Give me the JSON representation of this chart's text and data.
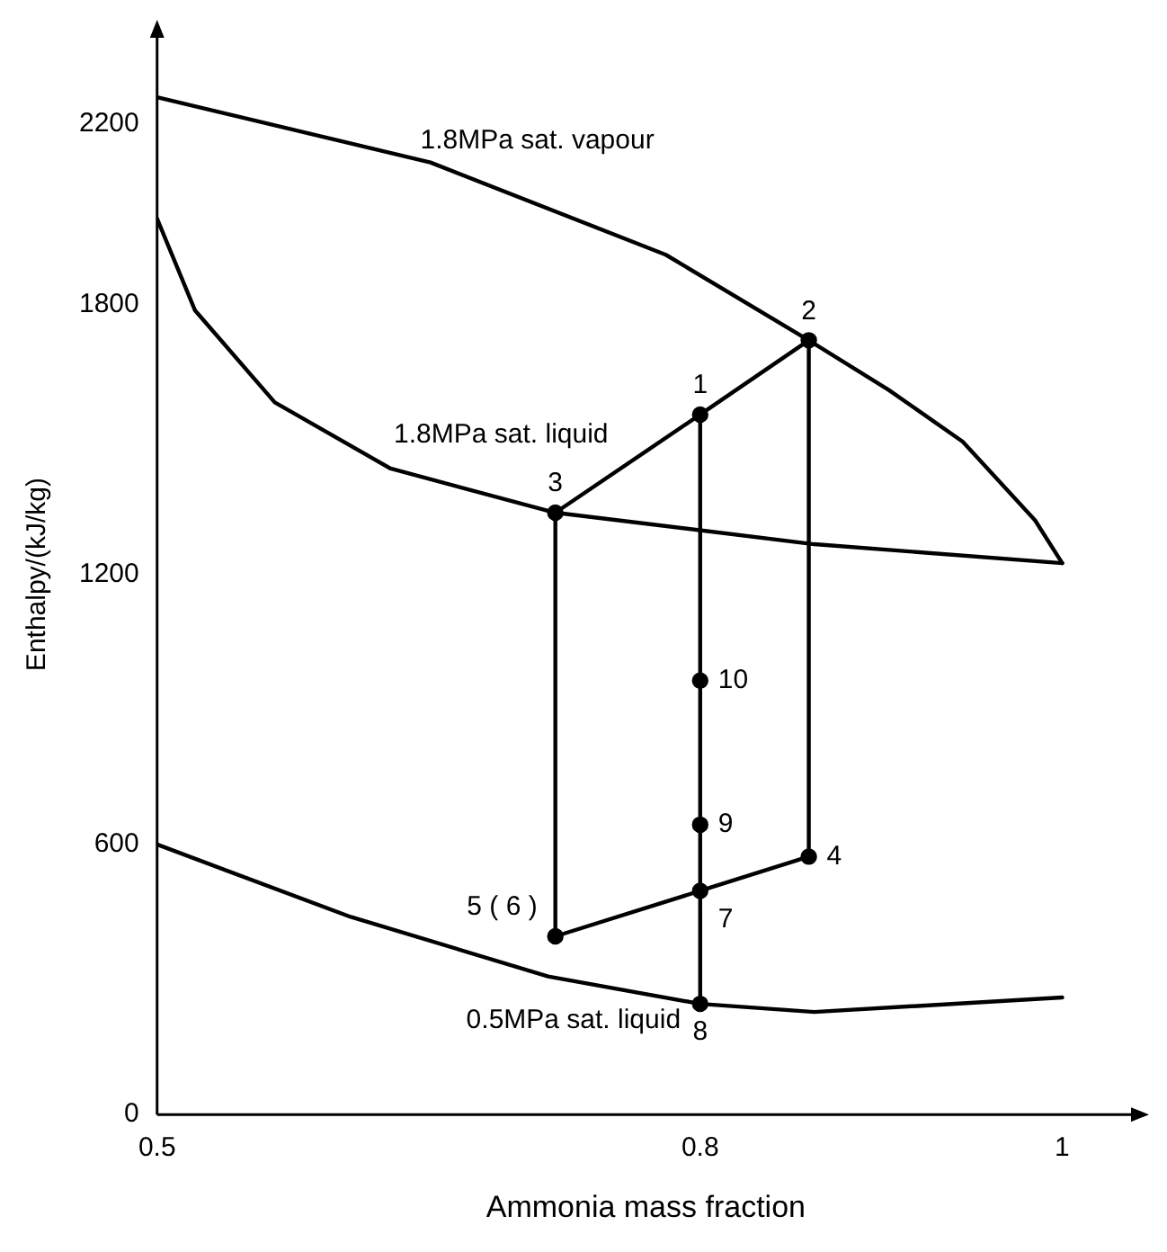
{
  "chart_data": {
    "type": "line",
    "xlabel": "Ammonia mass fraction",
    "ylabel": "Enthalpy/(kJ/kg)",
    "xlim": [
      0.5,
      1.04
    ],
    "ylim": [
      0,
      2400
    ],
    "xticks": [
      0.5,
      0.8,
      1
    ],
    "yticks": [
      0,
      600,
      1200,
      1800,
      2200
    ],
    "grid": false,
    "legend": false,
    "marker": "none",
    "line_style": "solid",
    "series": [
      {
        "name": "1.8MPa sat. vapour",
        "color": "#000000",
        "x": [
          0.5,
          0.651,
          0.781,
          0.86,
          0.904,
          0.945,
          0.985,
          1
        ],
        "values": [
          2260,
          2115,
          1910,
          1720,
          1610,
          1495,
          1320,
          1225
        ]
      },
      {
        "name": "1.8MPa sat. liquid",
        "color": "#000000",
        "x": [
          0.5,
          0.521,
          0.565,
          0.629,
          0.72,
          0.863,
          1
        ],
        "values": [
          1990,
          1786,
          1582,
          1435,
          1337,
          1267,
          1225
        ]
      },
      {
        "name": "0.5MPa sat. liquid",
        "color": "#000000",
        "x": [
          0.5,
          0.607,
          0.716,
          0.8,
          0.863,
          1
        ],
        "values": [
          600,
          439,
          307,
          246,
          228,
          260
        ]
      },
      {
        "color": "#000000",
        "x": [
          0.72,
          0.8,
          0.86
        ],
        "values": [
          1337,
          1555,
          1720
        ]
      },
      {
        "color": "#000000",
        "x": [
          0.72,
          0.8,
          0.86
        ],
        "values": [
          396,
          497,
          573
        ]
      },
      {
        "color": "#000000",
        "x": [
          0.86,
          0.86
        ],
        "values": [
          1720,
          573
        ]
      },
      {
        "color": "#000000",
        "x": [
          0.72,
          0.72
        ],
        "values": [
          1337,
          396
        ]
      },
      {
        "color": "#000000",
        "x": [
          0.8,
          0.8
        ],
        "values": [
          1555,
          246
        ]
      },
      {
        "type": "scatter",
        "marker": "circle",
        "color": "#000000",
        "x": [
          0.8,
          0.86,
          0.72,
          0.86,
          0.72,
          0.8,
          0.8,
          0.8,
          0.8
        ],
        "values": [
          1555,
          1720,
          1337,
          573,
          396,
          497,
          246,
          644,
          964
        ]
      }
    ],
    "annotations": [
      {
        "text": "1",
        "x": 0.8,
        "y": 1555
      },
      {
        "text": "2",
        "x": 0.86,
        "y": 1720
      },
      {
        "text": "3",
        "x": 0.72,
        "y": 1337
      },
      {
        "text": "4",
        "x": 0.86,
        "y": 573
      },
      {
        "text": "5 ( 6 )",
        "x": 0.72,
        "y": 396
      },
      {
        "text": "7",
        "x": 0.8,
        "y": 497
      },
      {
        "text": "8",
        "x": 0.8,
        "y": 246
      },
      {
        "text": "9",
        "x": 0.8,
        "y": 644
      },
      {
        "text": "10",
        "x": 0.8,
        "y": 964
      }
    ]
  }
}
